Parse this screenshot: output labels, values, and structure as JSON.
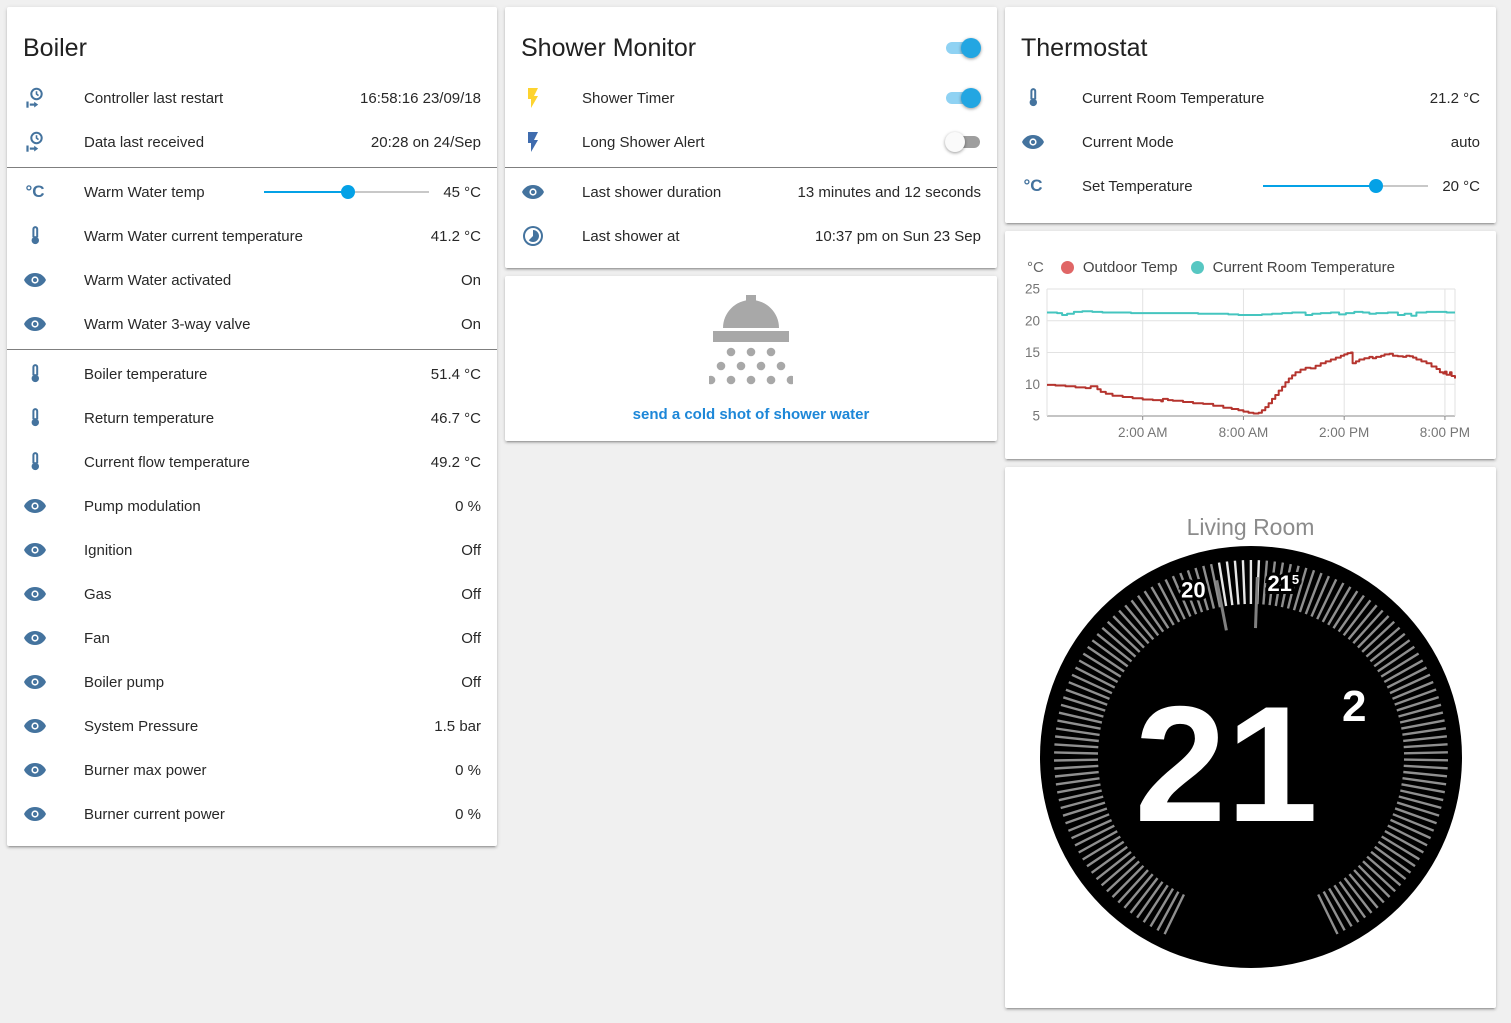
{
  "colors": {
    "icon_blue": "#44739e",
    "slider_blue": "#04a1e6",
    "toggle_on_thumb": "#23a6e2",
    "toggle_on_track": "#8fd2f3",
    "toggle_off_thumb": "#fafafa",
    "toggle_off_track": "#9e9e9e",
    "flash_yellow": "#fdd32f",
    "flash_blue": "#3f6cae",
    "link_blue": "#1d87d8",
    "shower_icon_gray": "#a8a8a8",
    "chart_red": "#b5342e",
    "chart_red_dot": "#e06666",
    "chart_teal": "#45c5bf",
    "chart_teal_dot": "#57c7c2",
    "dial_bg": "#000000"
  },
  "boiler": {
    "title": "Boiler",
    "rows": [
      {
        "icon": "clock-start",
        "label": "Controller last restart",
        "value": "16:58:16 23/09/18"
      },
      {
        "icon": "clock-start",
        "label": "Data last received",
        "value": "20:28 on 24/Sep",
        "divider_after": true
      },
      {
        "icon": "celsius",
        "label": "Warm Water temp",
        "slider_percent": 51,
        "value": "45 °C"
      },
      {
        "icon": "thermometer",
        "label": "Warm Water current temperature",
        "value": "41.2 °C"
      },
      {
        "icon": "eye",
        "label": "Warm Water activated",
        "value": "On"
      },
      {
        "icon": "eye",
        "label": "Warm Water 3-way valve",
        "value": "On",
        "divider_after": true
      },
      {
        "icon": "thermometer",
        "label": "Boiler temperature",
        "value": "51.4 °C"
      },
      {
        "icon": "thermometer",
        "label": "Return temperature",
        "value": "46.7 °C"
      },
      {
        "icon": "thermometer",
        "label": "Current flow temperature",
        "value": "49.2 °C"
      },
      {
        "icon": "eye",
        "label": "Pump modulation",
        "value": "0 %"
      },
      {
        "icon": "eye",
        "label": "Ignition",
        "value": "Off"
      },
      {
        "icon": "eye",
        "label": "Gas",
        "value": "Off"
      },
      {
        "icon": "eye",
        "label": "Fan",
        "value": "Off"
      },
      {
        "icon": "eye",
        "label": "Boiler pump",
        "value": "Off"
      },
      {
        "icon": "eye",
        "label": "System Pressure",
        "value": "1.5 bar"
      },
      {
        "icon": "eye",
        "label": "Burner max power",
        "value": "0 %"
      },
      {
        "icon": "eye",
        "label": "Burner current power",
        "value": "0 %"
      }
    ]
  },
  "shower_monitor": {
    "title": "Shower Monitor",
    "header_toggle": "on",
    "rows": [
      {
        "icon": "flash",
        "icon_color": "flash_yellow",
        "label": "Shower Timer",
        "toggle": "on"
      },
      {
        "icon": "flash",
        "icon_color": "flash_blue",
        "label": "Long Shower Alert",
        "toggle": "off",
        "divider_after": true
      },
      {
        "icon": "eye",
        "label": "Last shower duration",
        "value": "13 minutes and 12 seconds"
      },
      {
        "icon": "timelapse",
        "label": "Last shower at",
        "value": "10:37 pm on Sun 23 Sep"
      }
    ]
  },
  "shower_action": {
    "link_label": "send a cold shot of shower water"
  },
  "thermostat": {
    "title": "Thermostat",
    "rows": [
      {
        "icon": "thermometer",
        "label": "Current Room Temperature",
        "value": "21.2 °C"
      },
      {
        "icon": "eye",
        "label": "Current Mode",
        "value": "auto"
      },
      {
        "icon": "celsius",
        "label": "Set Temperature",
        "slider_percent": 68,
        "value": "20 °C"
      }
    ]
  },
  "chart_data": {
    "type": "line",
    "unit": "°C",
    "ylabel": "°C",
    "ylim": [
      5,
      25
    ],
    "yticks": [
      5,
      10,
      15,
      20,
      25
    ],
    "xlim": [
      0,
      24.3
    ],
    "xticks": [
      {
        "t": 5.7,
        "label": "2:00 AM"
      },
      {
        "t": 11.7,
        "label": "8:00 AM"
      },
      {
        "t": 17.7,
        "label": "2:00 PM"
      },
      {
        "t": 23.7,
        "label": "8:00 PM"
      }
    ],
    "grid": true,
    "legend_position": "top",
    "series": [
      {
        "name": "Outdoor Temp",
        "color": "#b5342e",
        "dot_color": "#e06666",
        "points": [
          [
            0,
            9.9
          ],
          [
            0.5,
            9.8
          ],
          [
            1.1,
            9.7
          ],
          [
            1.7,
            9.5
          ],
          [
            2.3,
            9.4
          ],
          [
            2.6,
            9.7
          ],
          [
            3.0,
            9.2
          ],
          [
            3.2,
            8.8
          ],
          [
            3.5,
            8.5
          ],
          [
            3.9,
            8.2
          ],
          [
            4.5,
            8.0
          ],
          [
            5.1,
            7.8
          ],
          [
            5.7,
            7.6
          ],
          [
            6.3,
            7.5
          ],
          [
            6.8,
            7.3
          ],
          [
            6.9,
            7.7
          ],
          [
            7.2,
            7.5
          ],
          [
            7.5,
            7.4
          ],
          [
            8.1,
            7.2
          ],
          [
            8.7,
            7.0
          ],
          [
            9.3,
            6.9
          ],
          [
            9.9,
            6.6
          ],
          [
            10.5,
            6.3
          ],
          [
            11.0,
            6.1
          ],
          [
            11.4,
            5.9
          ],
          [
            11.7,
            5.7
          ],
          [
            12.0,
            5.5
          ],
          [
            12.3,
            5.4
          ],
          [
            12.6,
            5.5
          ],
          [
            12.8,
            5.9
          ],
          [
            13.0,
            6.4
          ],
          [
            13.2,
            7.0
          ],
          [
            13.4,
            7.7
          ],
          [
            13.6,
            8.3
          ],
          [
            13.8,
            9.0
          ],
          [
            14.0,
            9.6
          ],
          [
            14.2,
            10.3
          ],
          [
            14.4,
            10.9
          ],
          [
            14.6,
            11.4
          ],
          [
            14.8,
            11.9
          ],
          [
            15.1,
            12.3
          ],
          [
            15.4,
            12.6
          ],
          [
            15.7,
            12.5
          ],
          [
            16.0,
            12.9
          ],
          [
            16.3,
            13.3
          ],
          [
            16.6,
            13.6
          ],
          [
            16.9,
            13.9
          ],
          [
            17.2,
            14.2
          ],
          [
            17.5,
            14.5
          ],
          [
            17.7,
            14.7
          ],
          [
            17.9,
            14.9
          ],
          [
            18.1,
            15.0
          ],
          [
            18.2,
            13.3
          ],
          [
            18.4,
            13.6
          ],
          [
            18.6,
            13.9
          ],
          [
            18.9,
            14.1
          ],
          [
            19.2,
            14.3
          ],
          [
            19.4,
            14.1
          ],
          [
            19.6,
            14.3
          ],
          [
            19.9,
            14.5
          ],
          [
            20.1,
            14.7
          ],
          [
            20.4,
            14.8
          ],
          [
            20.6,
            14.5
          ],
          [
            20.9,
            14.4
          ],
          [
            21.2,
            14.3
          ],
          [
            21.4,
            14.5
          ],
          [
            21.6,
            14.4
          ],
          [
            21.8,
            14.2
          ],
          [
            22.0,
            13.9
          ],
          [
            22.3,
            13.6
          ],
          [
            22.6,
            13.3
          ],
          [
            22.9,
            12.8
          ],
          [
            23.2,
            12.4
          ],
          [
            23.4,
            11.9
          ],
          [
            23.6,
            11.7
          ],
          [
            23.7,
            12.0
          ],
          [
            23.8,
            11.5
          ],
          [
            24.0,
            11.9
          ],
          [
            24.1,
            11.3
          ],
          [
            24.3,
            10.9
          ]
        ]
      },
      {
        "name": "Current Room Temperature",
        "color": "#45c5bf",
        "dot_color": "#57c7c2",
        "points": [
          [
            0,
            21.3
          ],
          [
            0.6,
            21.2
          ],
          [
            0.9,
            20.9
          ],
          [
            1.2,
            21.1
          ],
          [
            1.6,
            21.4
          ],
          [
            2.1,
            21.5
          ],
          [
            2.7,
            21.4
          ],
          [
            3.3,
            21.3
          ],
          [
            4.2,
            21.3
          ],
          [
            5.0,
            21.2
          ],
          [
            6.0,
            21.2
          ],
          [
            7.0,
            21.2
          ],
          [
            8.0,
            21.2
          ],
          [
            9.0,
            21.1
          ],
          [
            10.0,
            21.1
          ],
          [
            10.8,
            21.0
          ],
          [
            11.4,
            20.9
          ],
          [
            12.2,
            20.9
          ],
          [
            12.8,
            21.0
          ],
          [
            13.4,
            21.1
          ],
          [
            14.0,
            21.2
          ],
          [
            14.6,
            21.3
          ],
          [
            15.1,
            21.3
          ],
          [
            15.4,
            20.9
          ],
          [
            15.8,
            21.1
          ],
          [
            16.3,
            21.2
          ],
          [
            16.9,
            21.3
          ],
          [
            17.4,
            21.0
          ],
          [
            17.8,
            21.2
          ],
          [
            18.3,
            21.4
          ],
          [
            18.8,
            21.3
          ],
          [
            19.2,
            21.1
          ],
          [
            19.6,
            21.2
          ],
          [
            20.3,
            21.3
          ],
          [
            20.9,
            20.9
          ],
          [
            21.3,
            21.1
          ],
          [
            21.7,
            20.8
          ],
          [
            22.0,
            21.3
          ],
          [
            22.6,
            21.4
          ],
          [
            23.3,
            21.4
          ],
          [
            23.8,
            21.3
          ],
          [
            24.3,
            21.3
          ]
        ]
      }
    ]
  },
  "dial": {
    "room": "Living Room",
    "current": "21",
    "current_sup": "2",
    "scale_labels": [
      {
        "text": "20",
        "sup": "",
        "angle": -19
      },
      {
        "text": "21",
        "sup": "5",
        "angle": 10.5
      }
    ],
    "long_tick_angles": [
      -11,
      2
    ],
    "bright_range": [
      -11,
      2
    ]
  }
}
